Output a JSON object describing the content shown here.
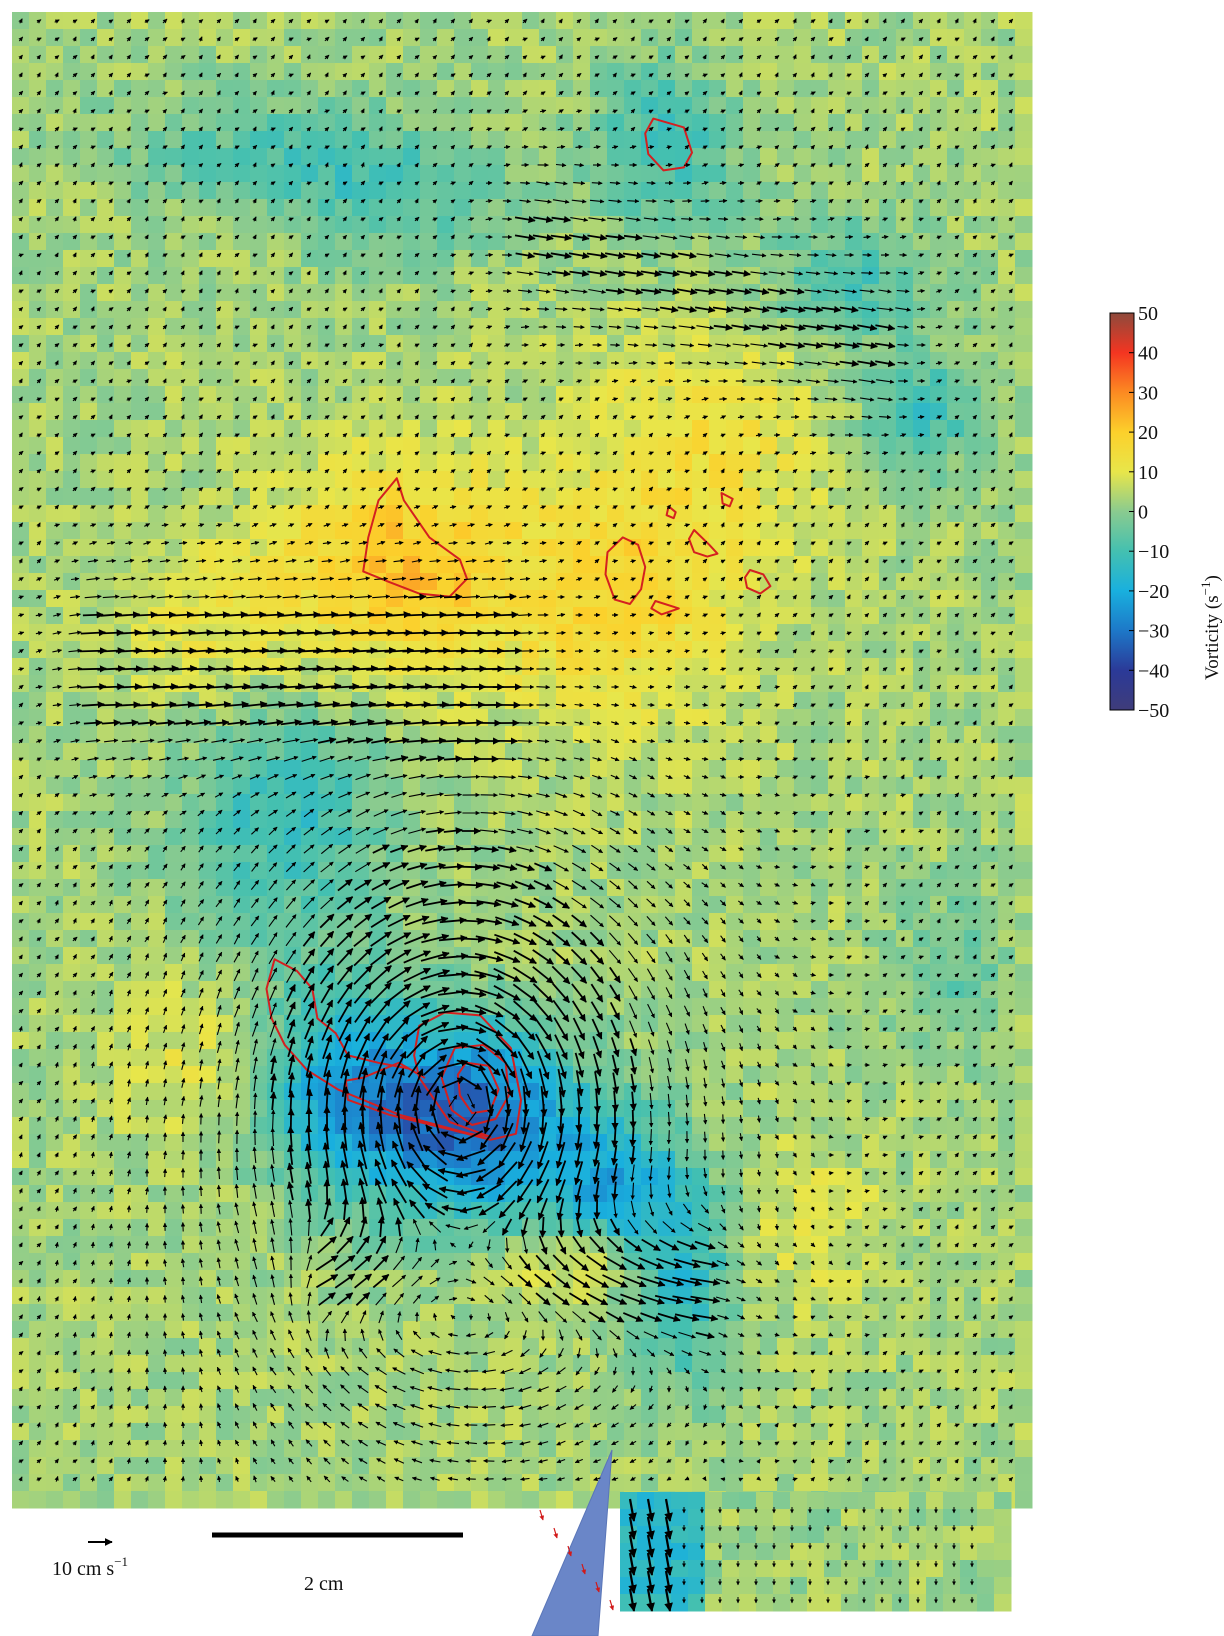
{
  "chart_data": {
    "type": "heatmap",
    "title": "",
    "xlabel": "",
    "ylabel": "",
    "colorbar": {
      "label": "Vorticity (s",
      "label_exponent": "−1",
      "label_close": ")",
      "range": [
        -50,
        50
      ],
      "ticks": [
        {
          "value": 50,
          "label": "50"
        },
        {
          "value": 40,
          "label": "40"
        },
        {
          "value": 30,
          "label": "30"
        },
        {
          "value": 20,
          "label": "20"
        },
        {
          "value": 10,
          "label": "10"
        },
        {
          "value": 0,
          "label": "0"
        },
        {
          "value": -10,
          "label": "−10"
        },
        {
          "value": -20,
          "label": "−20"
        },
        {
          "value": -30,
          "label": "−30"
        },
        {
          "value": -40,
          "label": "−40"
        },
        {
          "value": -50,
          "label": "−50"
        }
      ],
      "colors": [
        "#3f3c7a",
        "#2b3a98",
        "#1d78c8",
        "#19b0de",
        "#44c0b0",
        "#8acb8f",
        "#e8e64a",
        "#fcd02b",
        "#fc8a22",
        "#f43521",
        "#8e4a3c"
      ]
    },
    "reference_vector": {
      "value": 10,
      "label": "10 cm s",
      "label_exponent": "−1"
    },
    "scale_bar": {
      "value": 2,
      "label": "2 cm"
    },
    "vorticity_regions": [
      {
        "kind": "negative",
        "cx": 0.37,
        "cy": 0.12,
        "sx": 0.08,
        "sy": 0.03,
        "peak": -12
      },
      {
        "kind": "negative",
        "cx": 0.22,
        "cy": 0.09,
        "sx": 0.1,
        "sy": 0.03,
        "peak": -8
      },
      {
        "kind": "negative",
        "cx": 0.64,
        "cy": 0.09,
        "sx": 0.05,
        "sy": 0.04,
        "peak": -14
      },
      {
        "kind": "negative",
        "cx": 0.82,
        "cy": 0.18,
        "sx": 0.06,
        "sy": 0.03,
        "peak": -12
      },
      {
        "kind": "negative",
        "cx": 0.89,
        "cy": 0.27,
        "sx": 0.04,
        "sy": 0.03,
        "peak": -14
      },
      {
        "kind": "positive",
        "cx": 0.38,
        "cy": 0.37,
        "sx": 0.08,
        "sy": 0.05,
        "peak": 18
      },
      {
        "kind": "positive",
        "cx": 0.6,
        "cy": 0.39,
        "sx": 0.09,
        "sy": 0.06,
        "peak": 14
      },
      {
        "kind": "positive",
        "cx": 0.69,
        "cy": 0.28,
        "sx": 0.08,
        "sy": 0.05,
        "peak": 9
      },
      {
        "kind": "positive",
        "cx": 0.2,
        "cy": 0.41,
        "sx": 0.07,
        "sy": 0.04,
        "peak": 8
      },
      {
        "kind": "negative",
        "cx": 0.27,
        "cy": 0.54,
        "sx": 0.07,
        "sy": 0.06,
        "peak": -15
      },
      {
        "kind": "negative",
        "cx": 0.32,
        "cy": 0.72,
        "sx": 0.06,
        "sy": 0.05,
        "peak": -22
      },
      {
        "kind": "negative",
        "cx": 0.45,
        "cy": 0.74,
        "sx": 0.07,
        "sy": 0.045,
        "peak": -36
      },
      {
        "kind": "negative",
        "cx": 0.59,
        "cy": 0.79,
        "sx": 0.05,
        "sy": 0.04,
        "peak": -22
      },
      {
        "kind": "negative",
        "cx": 0.66,
        "cy": 0.85,
        "sx": 0.035,
        "sy": 0.05,
        "peak": -16
      },
      {
        "kind": "positive",
        "cx": 0.56,
        "cy": 0.835,
        "sx": 0.045,
        "sy": 0.02,
        "peak": 14
      },
      {
        "kind": "positive",
        "cx": 0.18,
        "cy": 0.7,
        "sx": 0.05,
        "sy": 0.04,
        "peak": 7
      },
      {
        "kind": "positive",
        "cx": 0.78,
        "cy": 0.81,
        "sx": 0.05,
        "sy": 0.04,
        "peak": 6
      },
      {
        "kind": "negative",
        "cx": 0.92,
        "cy": 0.64,
        "sx": 0.04,
        "sy": 0.04,
        "peak": -8
      }
    ],
    "flow_features": [
      {
        "kind": "vortex",
        "cx": 0.44,
        "cy": 0.74,
        "strength": 0.8,
        "radius": 0.14
      },
      {
        "kind": "jet",
        "x0": 0.12,
        "y0": 0.44,
        "x1": 0.45,
        "y1": 0.44,
        "strength": 0.55,
        "width": 0.04
      },
      {
        "kind": "jet",
        "x0": 0.55,
        "y0": 0.16,
        "x1": 0.82,
        "y1": 0.22,
        "strength": 0.4,
        "width": 0.035
      },
      {
        "kind": "jet",
        "x0": 0.35,
        "y0": 0.85,
        "x1": 0.64,
        "y1": 0.86,
        "strength": 0.7,
        "width": 0.03
      }
    ],
    "contours": [
      {
        "points": [
          [
            0.63,
            0.072
          ],
          [
            0.66,
            0.078
          ],
          [
            0.668,
            0.095
          ],
          [
            0.66,
            0.105
          ],
          [
            0.64,
            0.107
          ],
          [
            0.625,
            0.096
          ],
          [
            0.622,
            0.082
          ]
        ]
      },
      {
        "points": [
          [
            0.378,
            0.315
          ],
          [
            0.385,
            0.33
          ],
          [
            0.41,
            0.355
          ],
          [
            0.44,
            0.37
          ],
          [
            0.447,
            0.383
          ],
          [
            0.43,
            0.395
          ],
          [
            0.4,
            0.393
          ],
          [
            0.37,
            0.385
          ],
          [
            0.345,
            0.378
          ],
          [
            0.35,
            0.355
          ],
          [
            0.36,
            0.33
          ]
        ]
      },
      {
        "points": [
          [
            0.6,
            0.355
          ],
          [
            0.615,
            0.36
          ],
          [
            0.622,
            0.375
          ],
          [
            0.618,
            0.39
          ],
          [
            0.607,
            0.4
          ],
          [
            0.592,
            0.397
          ],
          [
            0.583,
            0.38
          ],
          [
            0.585,
            0.365
          ]
        ]
      },
      {
        "points": [
          [
            0.645,
            0.334
          ],
          [
            0.652,
            0.338
          ],
          [
            0.65,
            0.342
          ],
          [
            0.643,
            0.34
          ]
        ]
      },
      {
        "points": [
          [
            0.697,
            0.325
          ],
          [
            0.708,
            0.329
          ],
          [
            0.705,
            0.334
          ],
          [
            0.698,
            0.332
          ]
        ]
      },
      {
        "points": [
          [
            0.67,
            0.35
          ],
          [
            0.685,
            0.36
          ],
          [
            0.693,
            0.366
          ],
          [
            0.683,
            0.368
          ],
          [
            0.67,
            0.365
          ],
          [
            0.665,
            0.356
          ]
        ]
      },
      {
        "points": [
          [
            0.725,
            0.377
          ],
          [
            0.738,
            0.38
          ],
          [
            0.745,
            0.388
          ],
          [
            0.735,
            0.393
          ],
          [
            0.722,
            0.389
          ],
          [
            0.72,
            0.382
          ]
        ]
      },
      {
        "points": [
          [
            0.632,
            0.398
          ],
          [
            0.655,
            0.403
          ],
          [
            0.638,
            0.407
          ],
          [
            0.628,
            0.403
          ]
        ]
      },
      {
        "points": [
          [
            0.258,
            0.64
          ],
          [
            0.28,
            0.648
          ],
          [
            0.295,
            0.66
          ],
          [
            0.3,
            0.68
          ],
          [
            0.318,
            0.69
          ],
          [
            0.33,
            0.705
          ],
          [
            0.36,
            0.71
          ],
          [
            0.39,
            0.714
          ],
          [
            0.405,
            0.72
          ],
          [
            0.38,
            0.71
          ],
          [
            0.345,
            0.72
          ],
          [
            0.328,
            0.722
          ],
          [
            0.33,
            0.735
          ],
          [
            0.37,
            0.745
          ],
          [
            0.43,
            0.755
          ],
          [
            0.47,
            0.762
          ],
          [
            0.495,
            0.758
          ],
          [
            0.5,
            0.735
          ],
          [
            0.49,
            0.7
          ],
          [
            0.46,
            0.678
          ],
          [
            0.425,
            0.676
          ],
          [
            0.4,
            0.685
          ],
          [
            0.395,
            0.705
          ],
          [
            0.4,
            0.72
          ],
          [
            0.43,
            0.75
          ],
          [
            0.47,
            0.76
          ],
          [
            0.45,
            0.758
          ],
          [
            0.38,
            0.745
          ],
          [
            0.32,
            0.728
          ],
          [
            0.29,
            0.715
          ],
          [
            0.268,
            0.698
          ],
          [
            0.255,
            0.68
          ],
          [
            0.25,
            0.66
          ]
        ]
      },
      {
        "points": [
          [
            0.435,
            0.7
          ],
          [
            0.463,
            0.698
          ],
          [
            0.485,
            0.71
          ],
          [
            0.488,
            0.732
          ],
          [
            0.475,
            0.748
          ],
          [
            0.452,
            0.752
          ],
          [
            0.432,
            0.742
          ],
          [
            0.422,
            0.72
          ]
        ]
      },
      {
        "points": [
          [
            0.446,
            0.71
          ],
          [
            0.468,
            0.712
          ],
          [
            0.478,
            0.728
          ],
          [
            0.47,
            0.742
          ],
          [
            0.452,
            0.744
          ],
          [
            0.44,
            0.732
          ],
          [
            0.438,
            0.718
          ]
        ]
      }
    ]
  }
}
